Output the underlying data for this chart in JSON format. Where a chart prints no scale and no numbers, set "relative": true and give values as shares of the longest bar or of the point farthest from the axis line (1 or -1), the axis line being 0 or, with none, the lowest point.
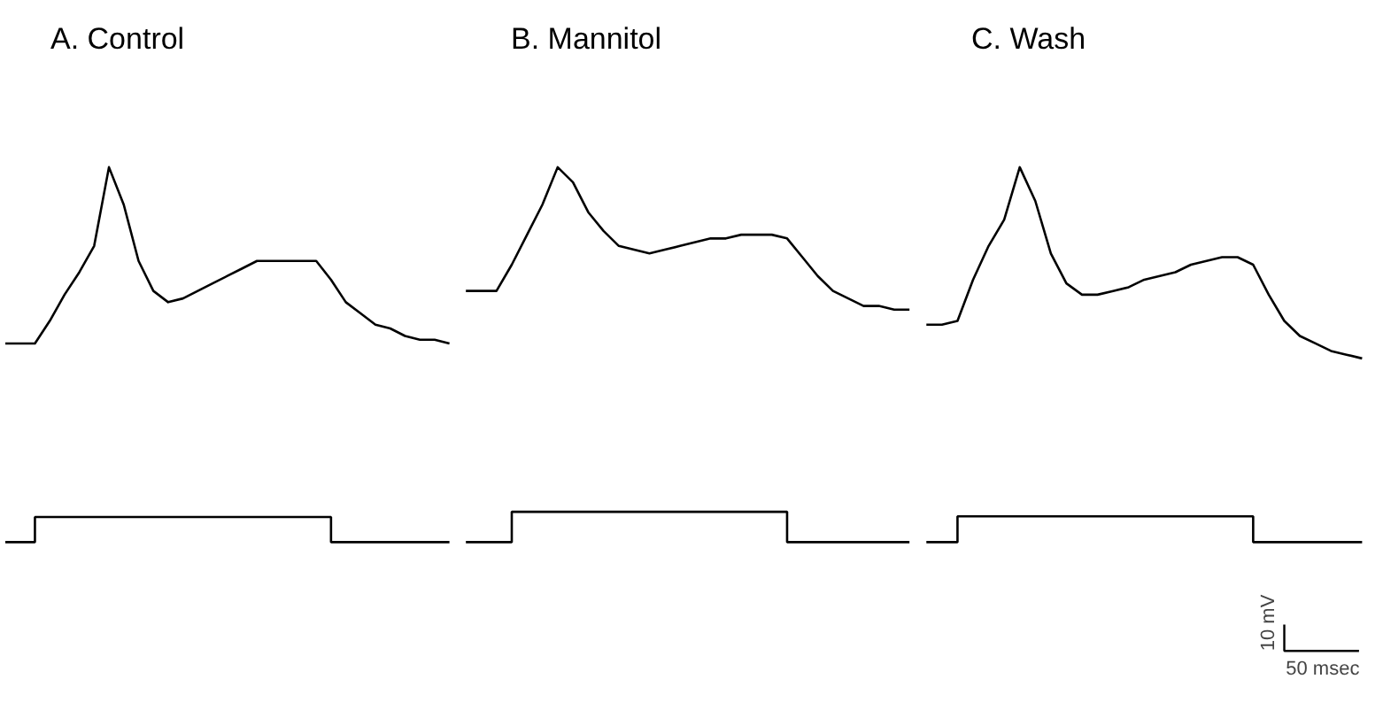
{
  "chart_data": [
    {
      "type": "line",
      "title": "A.  Control",
      "relative": true,
      "grid": false,
      "categories": [
        null,
        null,
        null,
        null,
        null,
        null,
        null,
        null,
        null,
        null,
        null,
        null,
        null,
        null,
        null,
        null,
        null,
        null,
        null,
        null,
        null,
        null,
        null,
        null,
        null,
        null,
        null,
        null,
        null,
        null,
        null
      ],
      "series": [
        {
          "color": "#000000",
          "values": [
            0.53,
            0.53,
            0.53,
            0.59,
            0.66,
            0.72,
            0.79,
            1.0,
            0.9,
            0.75,
            0.67,
            0.64,
            0.65,
            0.67,
            0.69,
            0.71,
            0.73,
            0.75,
            0.75,
            0.75,
            0.75,
            0.75,
            0.7,
            0.64,
            0.61,
            0.58,
            0.57,
            0.55,
            0.54,
            0.54,
            0.53
          ]
        },
        {
          "type": "step",
          "color": "#000000",
          "values": [
            0,
            0,
            0.067,
            0.067,
            0.067,
            0.067,
            0.067,
            0.067,
            0.067,
            0.067,
            0.067,
            0.067,
            0.067,
            0.067,
            0.067,
            0.067,
            0.067,
            0.067,
            0.067,
            0.067,
            0.067,
            0.067,
            0,
            0,
            0,
            0,
            0,
            0,
            0,
            0,
            0
          ]
        }
      ]
    },
    {
      "type": "line",
      "title": "B.  Mannitol",
      "relative": true,
      "grid": false,
      "categories": [
        null,
        null,
        null,
        null,
        null,
        null,
        null,
        null,
        null,
        null,
        null,
        null,
        null,
        null,
        null,
        null,
        null,
        null,
        null,
        null,
        null,
        null,
        null,
        null,
        null,
        null,
        null,
        null,
        null,
        null
      ],
      "series": [
        {
          "color": "#000000",
          "values": [
            0.67,
            0.67,
            0.67,
            0.74,
            0.82,
            0.9,
            1.0,
            0.96,
            0.88,
            0.83,
            0.79,
            0.78,
            0.77,
            0.78,
            0.79,
            0.8,
            0.81,
            0.81,
            0.82,
            0.82,
            0.82,
            0.81,
            0.76,
            0.71,
            0.67,
            0.65,
            0.63,
            0.63,
            0.62,
            0.62
          ]
        },
        {
          "type": "step",
          "color": "#000000",
          "values": [
            0,
            0,
            0,
            0.081,
            0.081,
            0.081,
            0.081,
            0.081,
            0.081,
            0.081,
            0.081,
            0.081,
            0.081,
            0.081,
            0.081,
            0.081,
            0.081,
            0.081,
            0.081,
            0.081,
            0.081,
            0,
            0,
            0,
            0,
            0,
            0,
            0,
            0,
            0
          ]
        }
      ]
    },
    {
      "type": "line",
      "title": "C.  Wash",
      "relative": true,
      "grid": false,
      "annotations": [
        "10 mV",
        "50 msec"
      ],
      "categories": [
        null,
        null,
        null,
        null,
        null,
        null,
        null,
        null,
        null,
        null,
        null,
        null,
        null,
        null,
        null,
        null,
        null,
        null,
        null,
        null,
        null,
        null,
        null,
        null,
        null,
        null,
        null,
        null,
        null
      ],
      "series": [
        {
          "color": "#000000",
          "values": [
            0.58,
            0.58,
            0.59,
            0.7,
            0.79,
            0.86,
            1.0,
            0.91,
            0.77,
            0.69,
            0.66,
            0.66,
            0.67,
            0.68,
            0.7,
            0.71,
            0.72,
            0.74,
            0.75,
            0.76,
            0.76,
            0.74,
            0.66,
            0.59,
            0.55,
            0.53,
            0.51,
            0.5,
            0.49
          ]
        },
        {
          "type": "step",
          "color": "#000000",
          "values": [
            0,
            0,
            0.069,
            0.069,
            0.069,
            0.069,
            0.069,
            0.069,
            0.069,
            0.069,
            0.069,
            0.069,
            0.069,
            0.069,
            0.069,
            0.069,
            0.069,
            0.069,
            0.069,
            0.069,
            0.069,
            0,
            0,
            0,
            0,
            0,
            0,
            0,
            0
          ]
        }
      ]
    }
  ]
}
